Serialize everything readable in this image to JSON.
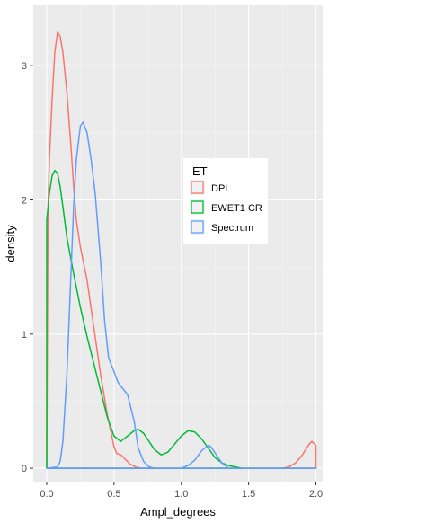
{
  "chart_data": {
    "type": "density",
    "title": "",
    "xlabel": "Ampl_degrees",
    "ylabel": "density",
    "xlim": [
      -0.1,
      2.05
    ],
    "ylim": [
      -0.1,
      3.45
    ],
    "x_ticks": [
      0.0,
      0.5,
      1.0,
      1.5,
      2.0
    ],
    "x_tick_labels": [
      "0.0",
      "0.5",
      "1.0",
      "1.5",
      "2.0"
    ],
    "y_ticks": [
      0,
      1,
      2,
      3
    ],
    "y_tick_labels": [
      "0",
      "1",
      "2",
      "3"
    ],
    "grid": true,
    "legend": {
      "title": "ET",
      "placement": "inside-right"
    },
    "series": [
      {
        "name": "DPI",
        "color": "#F8766D",
        "x": [
          0.0,
          0.01,
          0.02,
          0.04,
          0.06,
          0.08,
          0.1,
          0.12,
          0.15,
          0.18,
          0.2,
          0.22,
          0.25,
          0.28,
          0.3,
          0.35,
          0.4,
          0.45,
          0.5,
          0.52,
          0.55,
          0.58,
          0.62,
          0.66,
          0.7,
          0.8,
          0.9,
          1.0,
          1.2,
          1.4,
          1.6,
          1.75,
          1.8,
          1.85,
          1.9,
          1.95,
          1.97,
          2.0,
          2.0,
          2.0
        ],
        "y": [
          0.0,
          1.95,
          2.3,
          2.75,
          3.1,
          3.25,
          3.22,
          3.1,
          2.8,
          2.4,
          2.1,
          1.85,
          1.65,
          1.5,
          1.4,
          1.05,
          0.7,
          0.4,
          0.16,
          0.11,
          0.1,
          0.07,
          0.03,
          0.01,
          0.0,
          0.0,
          0.0,
          0.0,
          0.0,
          0.0,
          0.0,
          0.0,
          0.01,
          0.04,
          0.1,
          0.18,
          0.2,
          0.17,
          0.0,
          0.0
        ]
      },
      {
        "name": "EWET1 CR",
        "color": "#00BA38",
        "x": [
          0.0,
          0.0,
          0.02,
          0.04,
          0.06,
          0.08,
          0.1,
          0.12,
          0.15,
          0.2,
          0.25,
          0.3,
          0.35,
          0.4,
          0.45,
          0.5,
          0.55,
          0.6,
          0.65,
          0.68,
          0.72,
          0.76,
          0.8,
          0.85,
          0.9,
          0.95,
          1.0,
          1.05,
          1.1,
          1.15,
          1.2,
          1.25,
          1.3,
          1.35,
          1.4,
          1.45,
          1.5,
          1.6,
          1.8,
          2.0
        ],
        "y": [
          0.0,
          1.85,
          2.05,
          2.18,
          2.22,
          2.2,
          2.1,
          1.95,
          1.72,
          1.45,
          1.2,
          0.98,
          0.78,
          0.58,
          0.38,
          0.24,
          0.2,
          0.24,
          0.28,
          0.29,
          0.26,
          0.2,
          0.14,
          0.1,
          0.12,
          0.18,
          0.24,
          0.28,
          0.27,
          0.22,
          0.15,
          0.08,
          0.04,
          0.02,
          0.01,
          0.0,
          0.0,
          0.0,
          0.0,
          0.0
        ]
      },
      {
        "name": "Spectrum",
        "color": "#619CFF",
        "x": [
          0.0,
          0.08,
          0.1,
          0.12,
          0.15,
          0.18,
          0.2,
          0.22,
          0.25,
          0.27,
          0.3,
          0.33,
          0.36,
          0.4,
          0.43,
          0.46,
          0.5,
          0.53,
          0.56,
          0.6,
          0.65,
          0.68,
          0.72,
          0.76,
          0.8,
          0.9,
          1.0,
          1.05,
          1.1,
          1.15,
          1.2,
          1.22,
          1.26,
          1.3,
          1.35,
          1.4,
          1.6,
          1.8,
          2.0
        ],
        "y": [
          0.0,
          0.01,
          0.05,
          0.2,
          0.7,
          1.45,
          1.95,
          2.3,
          2.55,
          2.58,
          2.5,
          2.3,
          2.05,
          1.55,
          1.1,
          0.82,
          0.72,
          0.64,
          0.6,
          0.55,
          0.35,
          0.15,
          0.05,
          0.01,
          0.0,
          0.0,
          0.0,
          0.02,
          0.06,
          0.13,
          0.17,
          0.16,
          0.1,
          0.04,
          0.0,
          0.0,
          0.0,
          0.0,
          0.0
        ]
      }
    ]
  }
}
